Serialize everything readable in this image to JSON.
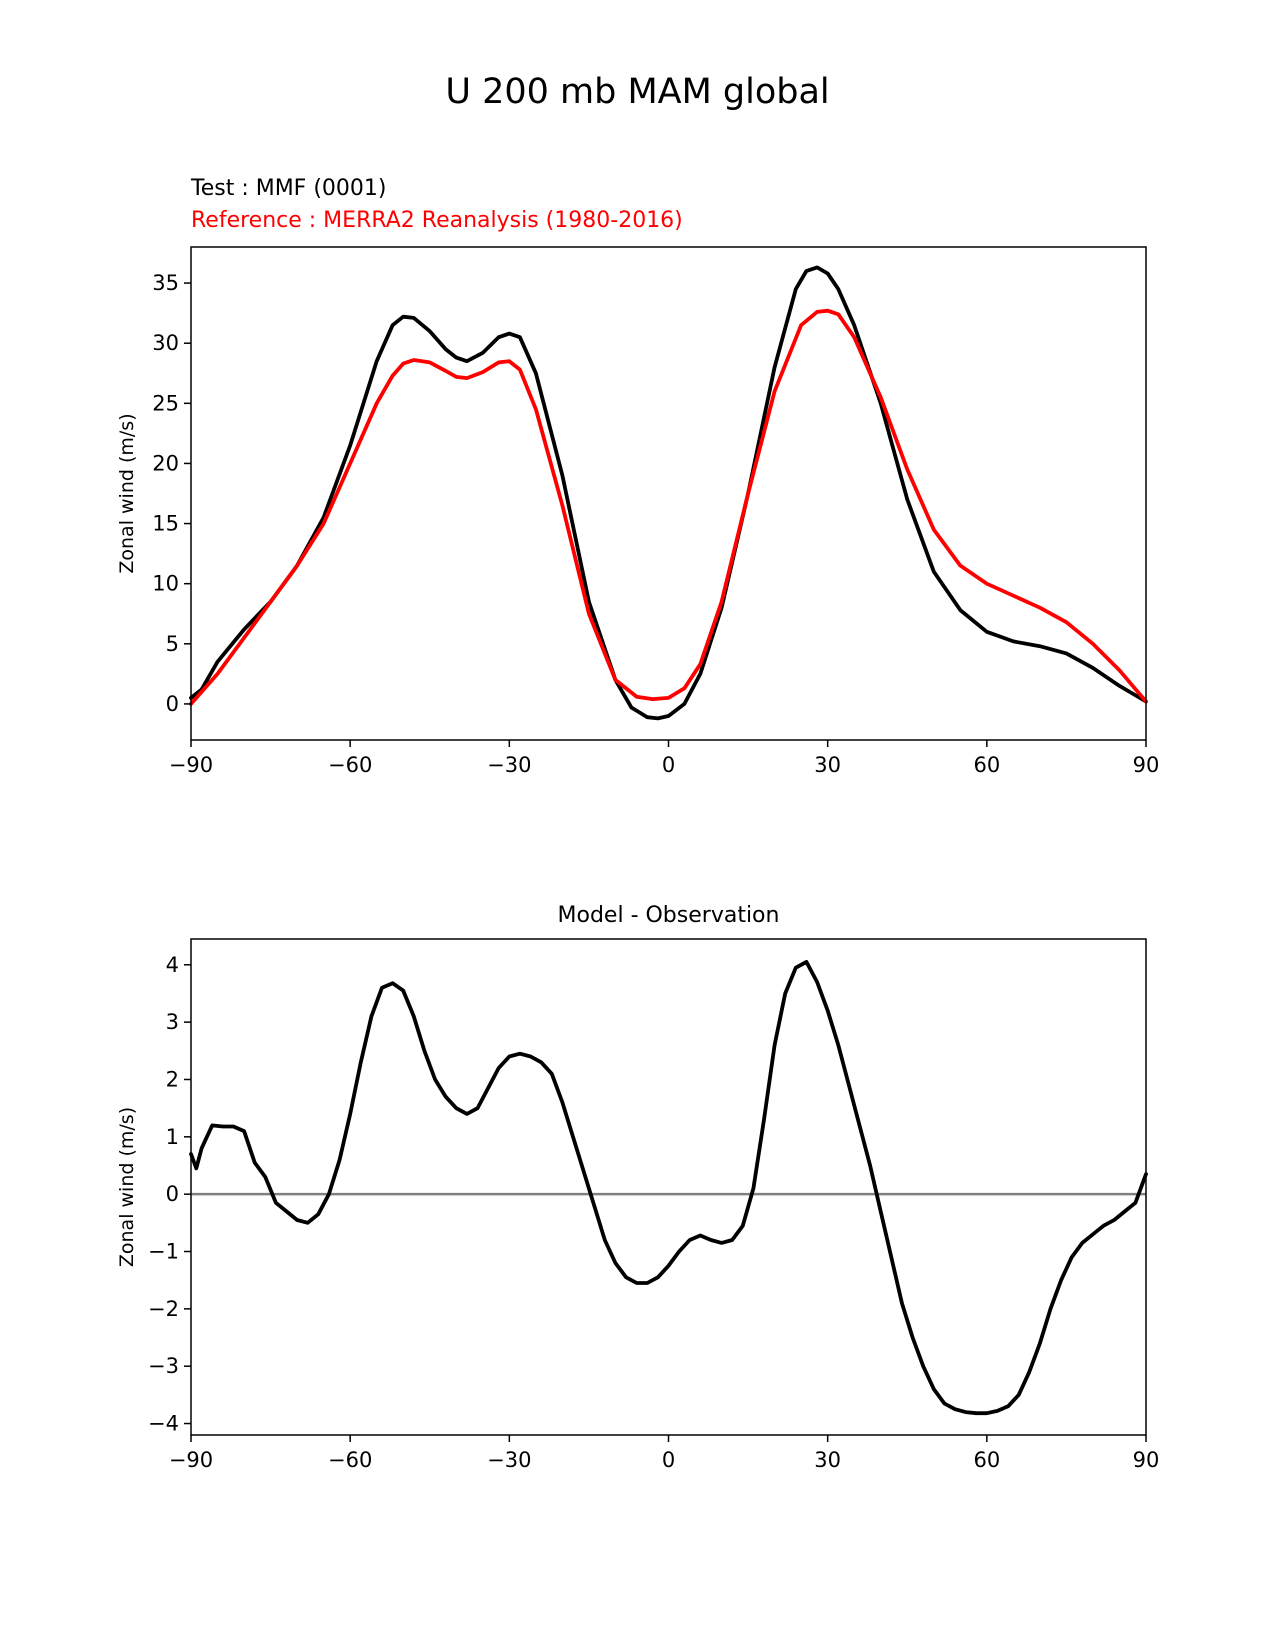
{
  "title": "U 200 mb MAM global",
  "colors": {
    "test": "#000000",
    "reference": "#ff0000",
    "zero_line": "#808080"
  },
  "chart_data": [
    {
      "type": "line",
      "subtitle_test": "Test : MMF (0001)",
      "subtitle_reference": "Reference : MERRA2 Reanalysis (1980-2016)",
      "xlabel": "",
      "ylabel": "Zonal wind (m/s)",
      "xlim": [
        -90,
        90
      ],
      "ylim": [
        -3,
        38
      ],
      "xticks": [
        -90,
        -60,
        -30,
        0,
        30,
        60,
        90
      ],
      "xtick_labels": [
        "−90",
        "−60",
        "−30",
        "0",
        "30",
        "60",
        "90"
      ],
      "yticks": [
        0,
        5,
        10,
        15,
        20,
        25,
        30,
        35
      ],
      "grid": false,
      "series": [
        {
          "color": "#000000",
          "x": [
            -90,
            -88,
            -85,
            -80,
            -75,
            -70,
            -65,
            -60,
            -55,
            -52,
            -50,
            -48,
            -45,
            -42,
            -40,
            -38,
            -35,
            -32,
            -30,
            -28,
            -25,
            -20,
            -15,
            -10,
            -7,
            -4,
            -2,
            0,
            3,
            6,
            10,
            15,
            20,
            24,
            26,
            28,
            30,
            32,
            35,
            40,
            45,
            50,
            55,
            60,
            65,
            70,
            75,
            80,
            85,
            90
          ],
          "y": [
            0.5,
            1.2,
            3.5,
            6.2,
            8.5,
            11.5,
            15.5,
            21.5,
            28.5,
            31.5,
            32.2,
            32.1,
            31.0,
            29.5,
            28.8,
            28.5,
            29.2,
            30.5,
            30.8,
            30.5,
            27.5,
            19.0,
            8.5,
            2.0,
            -0.3,
            -1.1,
            -1.2,
            -1.0,
            0.0,
            2.5,
            8.0,
            17.5,
            28.0,
            34.5,
            36.0,
            36.3,
            35.8,
            34.5,
            31.5,
            25.0,
            17.0,
            11.0,
            7.8,
            6.0,
            5.2,
            4.8,
            4.2,
            3.0,
            1.5,
            0.2
          ]
        },
        {
          "color": "#ff0000",
          "x": [
            -90,
            -85,
            -80,
            -75,
            -70,
            -65,
            -60,
            -55,
            -52,
            -50,
            -48,
            -45,
            -42,
            -40,
            -38,
            -35,
            -32,
            -30,
            -28,
            -25,
            -20,
            -15,
            -10,
            -6,
            -3,
            0,
            3,
            6,
            10,
            15,
            20,
            25,
            28,
            30,
            32,
            35,
            40,
            45,
            50,
            55,
            60,
            65,
            70,
            75,
            80,
            85,
            90
          ],
          "y": [
            0.0,
            2.5,
            5.5,
            8.5,
            11.5,
            15.0,
            20.0,
            25.0,
            27.3,
            28.3,
            28.6,
            28.4,
            27.7,
            27.2,
            27.1,
            27.6,
            28.4,
            28.5,
            27.8,
            24.5,
            16.5,
            7.5,
            2.0,
            0.6,
            0.4,
            0.5,
            1.3,
            3.3,
            8.5,
            17.5,
            26.0,
            31.5,
            32.6,
            32.7,
            32.4,
            30.5,
            25.5,
            19.5,
            14.5,
            11.5,
            10.0,
            9.0,
            8.0,
            6.8,
            5.0,
            2.8,
            0.2
          ]
        }
      ]
    },
    {
      "type": "line",
      "title": "Model - Observation",
      "xlabel": "",
      "ylabel": "Zonal wind (m/s)",
      "xlim": [
        -90,
        90
      ],
      "ylim": [
        -4.2,
        4.45
      ],
      "xticks": [
        -90,
        -60,
        -30,
        0,
        30,
        60,
        90
      ],
      "xtick_labels": [
        "−90",
        "−60",
        "−30",
        "0",
        "30",
        "60",
        "90"
      ],
      "yticks": [
        -4,
        -3,
        -2,
        -1,
        0,
        1,
        2,
        3,
        4
      ],
      "ytick_labels": [
        "−4",
        "−3",
        "−2",
        "−1",
        "0",
        "1",
        "2",
        "3",
        "4"
      ],
      "zero_line": true,
      "grid": false,
      "series": [
        {
          "color": "#000000",
          "x": [
            -90,
            -89,
            -88,
            -86,
            -84,
            -82,
            -80,
            -78,
            -76,
            -74,
            -72,
            -70,
            -68,
            -66,
            -64,
            -62,
            -60,
            -58,
            -56,
            -54,
            -52,
            -50,
            -48,
            -46,
            -44,
            -42,
            -40,
            -38,
            -36,
            -34,
            -32,
            -30,
            -28,
            -26,
            -24,
            -22,
            -20,
            -18,
            -16,
            -14,
            -12,
            -10,
            -8,
            -6,
            -4,
            -2,
            0,
            2,
            4,
            6,
            8,
            10,
            12,
            14,
            16,
            18,
            20,
            22,
            24,
            26,
            28,
            30,
            32,
            34,
            36,
            38,
            40,
            42,
            44,
            46,
            48,
            50,
            52,
            54,
            56,
            58,
            60,
            62,
            64,
            66,
            68,
            70,
            72,
            74,
            76,
            78,
            80,
            82,
            84,
            86,
            88,
            90
          ],
          "y": [
            0.7,
            0.45,
            0.8,
            1.2,
            1.18,
            1.18,
            1.1,
            0.55,
            0.3,
            -0.15,
            -0.3,
            -0.45,
            -0.5,
            -0.35,
            0.0,
            0.6,
            1.4,
            2.3,
            3.1,
            3.6,
            3.68,
            3.55,
            3.1,
            2.5,
            2.0,
            1.7,
            1.5,
            1.4,
            1.5,
            1.85,
            2.2,
            2.4,
            2.45,
            2.4,
            2.3,
            2.1,
            1.6,
            1.0,
            0.4,
            -0.2,
            -0.8,
            -1.2,
            -1.45,
            -1.55,
            -1.55,
            -1.45,
            -1.25,
            -1.0,
            -0.8,
            -0.72,
            -0.8,
            -0.85,
            -0.8,
            -0.55,
            0.1,
            1.3,
            2.6,
            3.5,
            3.95,
            4.05,
            3.7,
            3.2,
            2.6,
            1.9,
            1.2,
            0.5,
            -0.3,
            -1.1,
            -1.9,
            -2.5,
            -3.0,
            -3.4,
            -3.65,
            -3.75,
            -3.8,
            -3.82,
            -3.82,
            -3.78,
            -3.7,
            -3.5,
            -3.1,
            -2.6,
            -2.0,
            -1.5,
            -1.1,
            -0.85,
            -0.7,
            -0.55,
            -0.45,
            -0.3,
            -0.15,
            0.35
          ]
        }
      ]
    }
  ]
}
